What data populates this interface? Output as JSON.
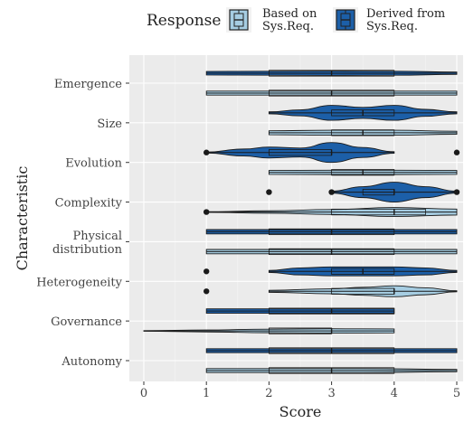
{
  "chart_data": {
    "type": "violin",
    "xlabel": "Score",
    "ylabel": "Characteristic",
    "xlim": [
      0,
      5
    ],
    "x_ticks": [
      "0",
      "1",
      "2",
      "3",
      "4",
      "5"
    ],
    "legend": {
      "title": "Response",
      "position": "top",
      "entries": [
        {
          "key": "based",
          "line1": "Based on",
          "line2": "Sys.Req."
        },
        {
          "key": "derived",
          "line1": "Derived from",
          "line2": "Sys.Req."
        }
      ]
    },
    "categories": [
      "Emergence",
      "Size",
      "Evolution",
      "Complexity",
      "Physical distribution",
      "Heterogeneity",
      "Governance",
      "Autonomy"
    ],
    "category_labels": [
      [
        "Emergence"
      ],
      [
        "Size"
      ],
      [
        "Evolution"
      ],
      [
        "Complexity"
      ],
      [
        "Physical",
        "distribution"
      ],
      [
        "Heterogeneity"
      ],
      [
        "Governance"
      ],
      [
        "Autonomy"
      ]
    ],
    "series": [
      {
        "name": "Derived from Sys.Req.",
        "key": "derived",
        "color": "#1c5fa8",
        "groups": [
          {
            "category": "Emergence",
            "min": 1,
            "q1": 2,
            "median": 3,
            "q3": 4,
            "max": 5,
            "width": [
              [
                1,
                0.18
              ],
              [
                2,
                0.2
              ],
              [
                3,
                0.22
              ],
              [
                4,
                0.2
              ],
              [
                5,
                0.12
              ]
            ],
            "outliers": []
          },
          {
            "category": "Size",
            "min": 2,
            "q1": 3,
            "median": 3.5,
            "q3": 4,
            "max": 5,
            "width": [
              [
                2,
                0.1
              ],
              [
                2.5,
                0.3
              ],
              [
                3,
                0.75
              ],
              [
                3.5,
                0.55
              ],
              [
                4,
                0.75
              ],
              [
                4.5,
                0.35
              ],
              [
                5,
                0.1
              ]
            ],
            "outliers": []
          },
          {
            "category": "Evolution",
            "min": 1,
            "q1": 2,
            "median": 3,
            "q3": 3,
            "max": 4,
            "width": [
              [
                1,
                0.05
              ],
              [
                1.6,
                0.35
              ],
              [
                2,
                0.55
              ],
              [
                2.5,
                0.45
              ],
              [
                3,
                1.0
              ],
              [
                3.5,
                0.5
              ],
              [
                4,
                0.08
              ]
            ],
            "outliers": [
              1,
              5
            ]
          },
          {
            "category": "Complexity",
            "min": 3,
            "q1": 3.5,
            "median": 4,
            "q3": 4,
            "max": 5,
            "width": [
              [
                3,
                0.1
              ],
              [
                3.5,
                0.55
              ],
              [
                4,
                1.0
              ],
              [
                4.5,
                0.55
              ],
              [
                5,
                0.1
              ]
            ],
            "outliers": [
              2,
              3,
              5
            ]
          },
          {
            "category": "Physical distribution",
            "min": 1,
            "q1": 2,
            "median": 3,
            "q3": 4,
            "max": 5,
            "width": [
              [
                1,
                0.22
              ],
              [
                2,
                0.22
              ],
              [
                3,
                0.22
              ],
              [
                4,
                0.22
              ],
              [
                5,
                0.22
              ]
            ],
            "outliers": []
          },
          {
            "category": "Heterogeneity",
            "min": 2,
            "q1": 3,
            "median": 3.5,
            "q3": 4,
            "max": 5,
            "width": [
              [
                2,
                0.1
              ],
              [
                2.5,
                0.35
              ],
              [
                3,
                0.45
              ],
              [
                4,
                0.45
              ],
              [
                4.5,
                0.35
              ],
              [
                5,
                0.1
              ]
            ],
            "outliers": [
              1
            ]
          },
          {
            "category": "Governance",
            "min": 1,
            "q1": 2,
            "median": 3,
            "q3": 4,
            "max": 4,
            "width": [
              [
                1,
                0.22
              ],
              [
                2,
                0.22
              ],
              [
                3,
                0.22
              ],
              [
                4,
                0.22
              ]
            ],
            "outliers": []
          },
          {
            "category": "Autonomy",
            "min": 1,
            "q1": 2,
            "median": 3,
            "q3": 4,
            "max": 5,
            "width": [
              [
                1,
                0.2
              ],
              [
                2,
                0.2
              ],
              [
                3,
                0.2
              ],
              [
                4,
                0.2
              ],
              [
                5,
                0.2
              ]
            ],
            "outliers": []
          }
        ]
      },
      {
        "name": "Based on Sys.Req.",
        "key": "based",
        "color": "#a6cde2",
        "groups": [
          {
            "category": "Emergence",
            "min": 1,
            "q1": 2,
            "median": 3,
            "q3": 4,
            "max": 5,
            "width": [
              [
                1,
                0.2
              ],
              [
                2,
                0.2
              ],
              [
                3,
                0.2
              ],
              [
                4,
                0.2
              ],
              [
                5,
                0.2
              ]
            ],
            "outliers": []
          },
          {
            "category": "Size",
            "min": 2,
            "q1": 3,
            "median": 3.5,
            "q3": 4,
            "max": 5,
            "width": [
              [
                2,
                0.2
              ],
              [
                3,
                0.25
              ],
              [
                4,
                0.25
              ],
              [
                5,
                0.15
              ]
            ],
            "outliers": []
          },
          {
            "category": "Evolution",
            "min": 2,
            "q1": 3,
            "median": 3.5,
            "q3": 4,
            "max": 5,
            "width": [
              [
                2,
                0.2
              ],
              [
                3,
                0.22
              ],
              [
                4,
                0.22
              ],
              [
                5,
                0.2
              ]
            ],
            "outliers": []
          },
          {
            "category": "Complexity",
            "min": 1,
            "q1": 3,
            "median": 4,
            "q3": 4.5,
            "max": 5,
            "width": [
              [
                1,
                0.03
              ],
              [
                2,
                0.12
              ],
              [
                3,
                0.25
              ],
              [
                4,
                0.45
              ],
              [
                5,
                0.3
              ]
            ],
            "outliers": [
              1
            ]
          },
          {
            "category": "Physical distribution",
            "min": 1,
            "q1": 2,
            "median": 3,
            "q3": 4,
            "max": 5,
            "width": [
              [
                1,
                0.22
              ],
              [
                2,
                0.22
              ],
              [
                3,
                0.22
              ],
              [
                4,
                0.22
              ],
              [
                5,
                0.22
              ]
            ],
            "outliers": []
          },
          {
            "category": "Heterogeneity",
            "min": 2,
            "q1": 3,
            "median": 4,
            "q3": 4,
            "max": 5,
            "width": [
              [
                2,
                0.1
              ],
              [
                3,
                0.25
              ],
              [
                3.5,
                0.4
              ],
              [
                4,
                0.55
              ],
              [
                4.5,
                0.35
              ],
              [
                5,
                0.05
              ]
            ],
            "outliers": [
              1
            ]
          },
          {
            "category": "Governance",
            "min": 0,
            "q1": 2,
            "median": 3,
            "q3": 3,
            "max": 4,
            "width": [
              [
                0,
                0.03
              ],
              [
                1,
                0.1
              ],
              [
                2,
                0.18
              ],
              [
                3,
                0.22
              ],
              [
                4,
                0.2
              ]
            ],
            "outliers": []
          },
          {
            "category": "Autonomy",
            "min": 1,
            "q1": 2,
            "median": 3,
            "q3": 4,
            "max": 5,
            "width": [
              [
                1,
                0.2
              ],
              [
                2,
                0.2
              ],
              [
                3.5,
                0.2
              ],
              [
                5,
                0.12
              ]
            ],
            "outliers": []
          }
        ]
      }
    ],
    "grid": true
  }
}
